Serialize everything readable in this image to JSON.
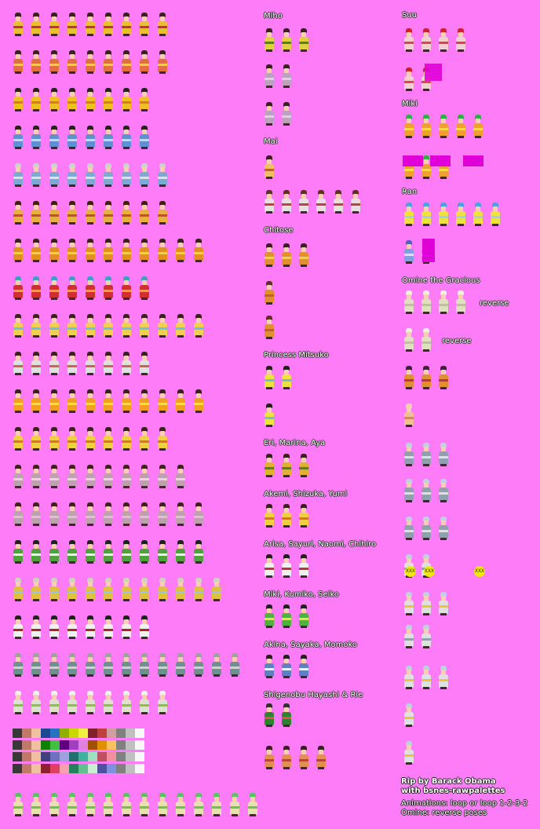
{
  "labels": {
    "miho": "Miho",
    "mai": "Mai",
    "chitose": "Chitose",
    "princess_mitsuko": "Princess Mitsuko",
    "eri_marina_aya": "Eri, Marina, Aya",
    "akemi_shizuka_yumi": "Akemi, Shizuka, Yumi",
    "arisa_group": "Arisa, Sayuri, Naomi, Chihiro",
    "miki_kumiko_seiko": "Miki, Kumiko, Seiko",
    "akina_sayaka_momoko": "Akina, Sayaka, Momoko",
    "shigenobu": "Shigenobu Hayashi & Rie",
    "suu": "Suu",
    "miki": "Miki",
    "ran": "Ran",
    "omine": "Omine the Gracious",
    "reverse1": "reverse",
    "reverse2": "reverse"
  },
  "credit": {
    "line1": "Rip by Barack Obama",
    "line2": "with bsnes-rawpalettes",
    "line3": "Animations: loop or loop 1-2-3-2",
    "line4": "Omine: reverse poses"
  },
  "marker_text": "XXX",
  "colors": {
    "background": "#ff7cf8",
    "label_text": "#ffffff",
    "label_outline": "#303030"
  },
  "palette_rows": [
    [
      "#383838",
      "#c07868",
      "#f0c0a0",
      "#204890",
      "#2870c0",
      "#90b000",
      "#c8d800",
      "#f0f040",
      "#802028",
      "#c04040",
      "#d0a0a0",
      "#808080",
      "#c0c0c0",
      "#f8f8f8"
    ],
    [
      "#383838",
      "#c07868",
      "#f0c0a0",
      "#108000",
      "#40c040",
      "#600080",
      "#a040c0",
      "#e080e0",
      "#a05000",
      "#e09000",
      "#f8c060",
      "#808080",
      "#c0c0c0",
      "#f8f8f8"
    ],
    [
      "#383838",
      "#c07868",
      "#f0c0a0",
      "#404080",
      "#7070c0",
      "#a0a0e0",
      "#207070",
      "#40b0a0",
      "#a0e0c0",
      "#c05060",
      "#f090a0",
      "#808080",
      "#c0c0c0",
      "#f8f8f8"
    ],
    [
      "#383838",
      "#c07868",
      "#f0c0a0",
      "#902030",
      "#e04060",
      "#f8a0b0",
      "#208060",
      "#60c090",
      "#c8f0d0",
      "#5050a0",
      "#8090e0",
      "#808080",
      "#c0c0c0",
      "#f8f8f8"
    ]
  ],
  "sprite_rows": [
    {
      "count": 9,
      "hair": "#3a2020",
      "robe": "#e8c030",
      "sash": "#c03050"
    },
    {
      "count": 9,
      "hair": "#3a2020",
      "robe": "#e07040",
      "sash": "#f0d040"
    },
    {
      "count": 8,
      "hair": "#2a2020",
      "robe": "#f0c020",
      "sash": "#d08020"
    },
    {
      "count": 8,
      "hair": "#2a2020",
      "robe": "#6090d0",
      "sash": "#c0d8f0"
    },
    {
      "count": 9,
      "hair": "#d0d0d0",
      "robe": "#80a8d0",
      "sash": "#e0e0e0"
    },
    {
      "count": 9,
      "hair": "#402010",
      "robe": "#e8b040",
      "sash": "#c05030"
    },
    {
      "count": 11,
      "hair": "#3a2020",
      "robe": "#e09020",
      "sash": "#f0d040"
    },
    {
      "count": 8,
      "hair": "#40a0c0",
      "robe": "#d03030",
      "sash": "#f0a040"
    },
    {
      "count": 11,
      "hair": "#3a2020",
      "robe": "#f0d050",
      "sash": "#70c0e0"
    },
    {
      "count": 8,
      "hair": "#3a2020",
      "robe": "#e0e0e0",
      "sash": "#d06060"
    },
    {
      "count": 11,
      "hair": "#3a2020",
      "robe": "#f0a020",
      "sash": "#f0e040"
    },
    {
      "count": 9,
      "hair": "#3a2020",
      "robe": "#f0d040",
      "sash": "#e07030"
    },
    {
      "count": 10,
      "hair": "#402020",
      "robe": "#c0a0b0",
      "sash": "#f0d0e0"
    },
    {
      "count": 11,
      "hair": "#402020",
      "robe": "#c0a0b0",
      "sash": "#e0c0d0"
    },
    {
      "count": 11,
      "hair": "#202020",
      "robe": "#50a040",
      "sash": "#f0f0f0"
    },
    {
      "count": 12,
      "hair": "#d0d0c0",
      "robe": "#e0c040",
      "sash": "#a0c0e0"
    },
    {
      "count": 8,
      "hair": "#202020",
      "robe": "#f0f0f0",
      "sash": "#b02030"
    },
    {
      "count": 13,
      "hair": "#a0a0a0",
      "robe": "#709090",
      "sash": "#d0d0d0"
    },
    {
      "count": 9,
      "hair": "#f0f0f0",
      "robe": "#e0e0d0",
      "sash": "#90c040"
    },
    {
      "count": 14,
      "hair": "#60c060",
      "robe": "#e8e0b0",
      "sash": "#70c050"
    }
  ],
  "mid_rows": [
    {
      "count": 3,
      "hair": "#3a2020",
      "robe": "#e0d040",
      "sash": "#508030"
    },
    {
      "count": 2,
      "hair": "#3a2020",
      "robe": "#c0a0c0",
      "sash": "#e0d0e0"
    },
    {
      "count": 2,
      "hair": "#3a2020",
      "robe": "#c0a0c0",
      "sash": "#e0d0e0"
    },
    {
      "count": 1,
      "hair": "#3a2020",
      "robe": "#f0c060",
      "sash": "#c06030"
    },
    {
      "count": 6,
      "hair": "#603020",
      "robe": "#e8e0e0",
      "sash": "#c04040"
    },
    {
      "count": 3,
      "hair": "#3a2020",
      "robe": "#e09030",
      "sash": "#f0d050"
    },
    {
      "count": 1,
      "hair": "#603020",
      "robe": "#e09030",
      "sash": "#c06030"
    },
    {
      "count": 1,
      "hair": "#603020",
      "robe": "#e09030",
      "sash": "#c06030"
    },
    {
      "count": 2,
      "hair": "#202020",
      "robe": "#f0e040",
      "sash": "#70c0d0"
    },
    {
      "count": 1,
      "hair": "#202020",
      "robe": "#f0e040",
      "sash": "#70c0d0"
    },
    {
      "count": 3,
      "hair": "#3a2020",
      "robe": "#e0b030",
      "sash": "#508030"
    },
    {
      "count": 3,
      "hair": "#3a2020",
      "robe": "#f0d040",
      "sash": "#e07030"
    },
    {
      "count": 3,
      "hair": "#202020",
      "robe": "#f0f0f0",
      "sash": "#c03040"
    },
    {
      "count": 3,
      "hair": "#202020",
      "robe": "#50b040",
      "sash": "#f0e040"
    },
    {
      "count": 3,
      "hair": "#202020",
      "robe": "#6080c0",
      "sash": "#f0f0f0"
    },
    {
      "count": 2,
      "hair": "#303030",
      "robe": "#308030",
      "sash": "#e05050"
    },
    {
      "count": 4,
      "hair": "#3a2020",
      "robe": "#e09050",
      "sash": "#c04040"
    }
  ],
  "right_rows": [
    {
      "count": 4,
      "hair": "#d02030",
      "robe": "#f0d0d0",
      "sash": "#e04050"
    },
    {
      "count": 2,
      "hair": "#d02030",
      "robe": "#f0d0d0",
      "sash": "#e04050"
    },
    {
      "count": 5,
      "hair": "#30b040",
      "robe": "#f0a030",
      "sash": "#f0e040"
    },
    {
      "count": 3,
      "hair": "#30b040",
      "robe": "#f0a030",
      "sash": "#f0e040"
    },
    {
      "count": 6,
      "hair": "#50a0e0",
      "robe": "#f0e040",
      "sash": "#a0d0f0"
    },
    {
      "count": 2,
      "hair": "#5060c0",
      "robe": "#80a0e0",
      "sash": "#e0e0f0"
    },
    {
      "count": 4,
      "hair": "#f0f0e0",
      "robe": "#e0e0c0",
      "sash": "#c0c0a0"
    },
    {
      "count": 2,
      "hair": "#f0f0e0",
      "robe": "#e0e0c0",
      "sash": "#c0c0a0"
    },
    {
      "count": 3,
      "hair": "#402040",
      "robe": "#e09030",
      "sash": "#c03050"
    },
    {
      "count": 1,
      "hair": "#f0d0b0",
      "robe": "#f0c090",
      "sash": "#e08060"
    },
    {
      "count": 3,
      "hair": "#c0d0e0",
      "robe": "#90a0b0",
      "sash": "#e0e0e0"
    },
    {
      "count": 3,
      "hair": "#c0d0e0",
      "robe": "#90a0b0",
      "sash": "#e0e0e0"
    },
    {
      "count": 3,
      "hair": "#c0d0e0",
      "robe": "#90a0b0",
      "sash": "#e0e0e0"
    },
    {
      "count": 2,
      "hair": "#c0d0e0",
      "robe": "#e0e0e0",
      "sash": "#90a0b0"
    },
    {
      "count": 3,
      "hair": "#c0d0e0",
      "robe": "#e0e0e0",
      "sash": "#f0c040"
    },
    {
      "count": 2,
      "hair": "#c0d0e0",
      "robe": "#e0e0e0",
      "sash": "#90a0b0"
    },
    {
      "count": 3,
      "hair": "#c0d0e0",
      "robe": "#e0e0e0",
      "sash": "#f0c040"
    },
    {
      "count": 1,
      "hair": "#c0d0e0",
      "robe": "#e0e0e0",
      "sash": "#f0c040"
    },
    {
      "count": 1,
      "hair": "#c0d0e0",
      "robe": "#e0e0e0",
      "sash": "#f0c040"
    }
  ]
}
